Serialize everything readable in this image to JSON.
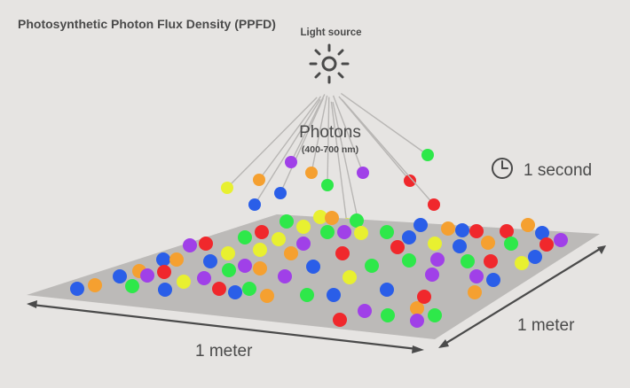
{
  "title": "Photosynthetic Photon Flux Density  (PPFD)",
  "light_source": {
    "label": "Light source",
    "icon": "sun-icon"
  },
  "photons": {
    "label": "Photons",
    "range": "(400-700 nm)"
  },
  "time": {
    "label": "1 second",
    "icon": "clock-icon"
  },
  "dimensions": {
    "width_label": "1 meter",
    "depth_label": "1 meter"
  },
  "photon_colors": {
    "red": "#f0282c",
    "green": "#2ee84a",
    "blue": "#2a5ee8",
    "purple": "#a040e8",
    "yellow": "#e8f030",
    "orange": "#f5a030"
  },
  "colors": {
    "background": "#e6e4e2",
    "plane": "#bcbab8",
    "text": "#4a4a4a"
  }
}
